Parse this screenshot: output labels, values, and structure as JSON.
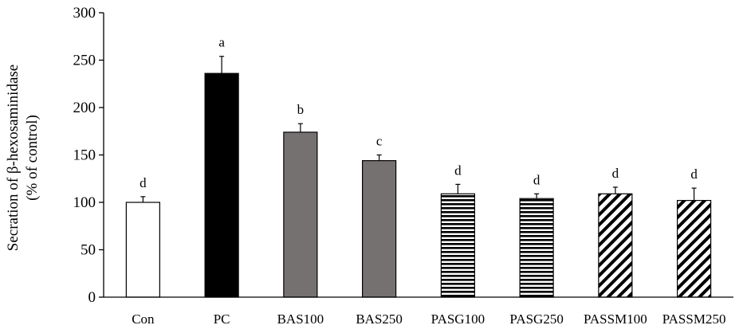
{
  "chart_data": {
    "type": "bar",
    "title": "",
    "xlabel": "",
    "ylabel": "Secration of β-hexosaminidase",
    "ylabel2": "(% of control)",
    "ylim": [
      0,
      300
    ],
    "yticks": [
      0,
      50,
      100,
      150,
      200,
      250,
      300
    ],
    "grid": false,
    "legend": "none",
    "categories": [
      "Con",
      "PC",
      "BAS100",
      "BAS250",
      "PASG100",
      "PASG250",
      "PASSM100",
      "PASSM250"
    ],
    "values": [
      100,
      236,
      174,
      144,
      109,
      104,
      109,
      102
    ],
    "errors": [
      6,
      18,
      9,
      6,
      10,
      5,
      7,
      13
    ],
    "letters": [
      "d",
      "a",
      "b",
      "c",
      "d",
      "d",
      "d",
      "d"
    ],
    "bar_styles": [
      {
        "fill": "white",
        "color": "#000000"
      },
      {
        "fill": "solid",
        "color": "#000000"
      },
      {
        "fill": "solid",
        "color": "#767171"
      },
      {
        "fill": "solid",
        "color": "#767171"
      },
      {
        "fill": "horizontal-stripes",
        "color": "#000000"
      },
      {
        "fill": "horizontal-stripes",
        "color": "#000000"
      },
      {
        "fill": "diagonal-stripes",
        "color": "#000000"
      },
      {
        "fill": "diagonal-stripes",
        "color": "#000000"
      }
    ]
  }
}
